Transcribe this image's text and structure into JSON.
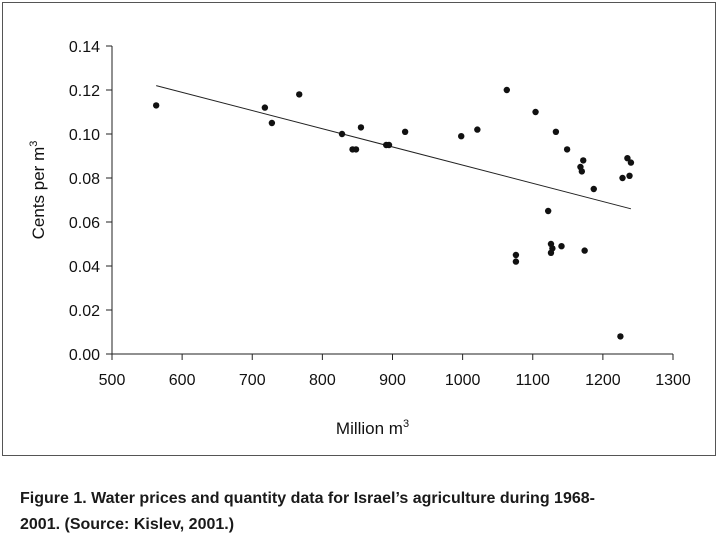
{
  "chart_data": {
    "type": "scatter",
    "title": "",
    "xlabel": "Million m",
    "xlabel_sup": "3",
    "ylabel": "Cents per m",
    "ylabel_sup": "3",
    "xlim": [
      500,
      1300
    ],
    "ylim": [
      0,
      0.14
    ],
    "xticks": [
      "500",
      "600",
      "700",
      "800",
      "900",
      "1000",
      "1100",
      "1200",
      "1300"
    ],
    "yticks": [
      "0.00",
      "0.02",
      "0.04",
      "0.06",
      "0.08",
      "0.10",
      "0.12",
      "0.14"
    ],
    "grid": false,
    "series": [
      {
        "name": "observations",
        "points": [
          [
            563,
            0.113
          ],
          [
            718,
            0.112
          ],
          [
            728,
            0.105
          ],
          [
            767,
            0.118
          ],
          [
            828,
            0.1
          ],
          [
            843,
            0.093
          ],
          [
            848,
            0.093
          ],
          [
            855,
            0.103
          ],
          [
            891,
            0.095
          ],
          [
            895,
            0.095
          ],
          [
            918,
            0.101
          ],
          [
            998,
            0.099
          ],
          [
            1021,
            0.102
          ],
          [
            1063,
            0.12
          ],
          [
            1076,
            0.045
          ],
          [
            1076,
            0.042
          ],
          [
            1104,
            0.11
          ],
          [
            1122,
            0.065
          ],
          [
            1126,
            0.05
          ],
          [
            1126,
            0.046
          ],
          [
            1128,
            0.048
          ],
          [
            1133,
            0.101
          ],
          [
            1141,
            0.049
          ],
          [
            1149,
            0.093
          ],
          [
            1168,
            0.085
          ],
          [
            1170,
            0.083
          ],
          [
            1172,
            0.088
          ],
          [
            1174,
            0.047
          ],
          [
            1187,
            0.075
          ],
          [
            1225,
            0.008
          ],
          [
            1228,
            0.08
          ],
          [
            1235,
            0.089
          ],
          [
            1238,
            0.081
          ],
          [
            1240,
            0.087
          ]
        ]
      }
    ],
    "trendline": {
      "type": "linear",
      "x": [
        563,
        1240
      ],
      "y": [
        0.122,
        0.066
      ]
    }
  },
  "caption": {
    "line1": "Figure 1. Water prices and quantity data for Israel’s agriculture during 1968-",
    "line2": "2001. (Source: Kislev, 2001.)"
  },
  "colors": {
    "axis": "#222222",
    "marker": "#111111",
    "trendline": "#222222"
  }
}
